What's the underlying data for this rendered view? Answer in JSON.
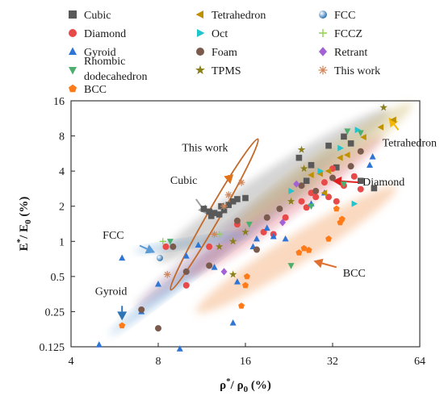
{
  "chart_data": {
    "type": "scatter",
    "xscale": "log2",
    "yscale": "log2",
    "xlim": [
      4,
      64
    ],
    "ylim": [
      0.125,
      16
    ],
    "xticks": [
      "4",
      "8",
      "16",
      "32",
      "64"
    ],
    "yticks": [
      "0.125",
      "0.25",
      "0.5",
      "1",
      "2",
      "4",
      "8",
      "16"
    ],
    "xlabel_main": "ρ",
    "xlabel_sup": "*",
    "xlabel_mid": "/ ρ",
    "xlabel_sub": "0",
    "xlabel_tail": " (%)",
    "ylabel_main": "E",
    "ylabel_sup": "*",
    "ylabel_mid": "/ E",
    "ylabel_sub": "0",
    "ylabel_tail": " (%)",
    "legend": [
      {
        "name": "Cubic",
        "marker": "square",
        "color": "#595959"
      },
      {
        "name": "Tetrahedron",
        "marker": "triangle-left",
        "color": "#bf9000"
      },
      {
        "name": "FCC",
        "marker": "circle-gradient",
        "color": "#5b9bd5"
      },
      {
        "name": "Diamond",
        "marker": "circle",
        "color": "#e84a4a"
      },
      {
        "name": "Oct",
        "marker": "triangle-right",
        "color": "#21c4cc"
      },
      {
        "name": "FCCZ",
        "marker": "plus",
        "color": "#92d050"
      },
      {
        "name": "Gyroid",
        "marker": "triangle-up",
        "color": "#2e75d6"
      },
      {
        "name": "Foam",
        "marker": "circle",
        "color": "#7b5a4e"
      },
      {
        "name": "Retrant",
        "marker": "diamond",
        "color": "#a461d6"
      },
      {
        "name": "Rhombic",
        "name2": "dodecahedron",
        "marker": "triangle-down",
        "color": "#4caf6e"
      },
      {
        "name": "TPMS",
        "marker": "star",
        "color": "#8a7f1a"
      },
      {
        "name": "This work",
        "marker": "asterisk",
        "color": "#d2875a"
      },
      {
        "name": "BCC",
        "marker": "pentagon",
        "color": "#ff7b1a"
      }
    ],
    "regions": [
      {
        "name": "Gyroid",
        "color": "#5b9bd5",
        "cx": 12.5,
        "cy": 0.75,
        "sa": 2.85,
        "sb": 1.12,
        "angle": 37
      },
      {
        "name": "BCC",
        "color": "#f4a46a",
        "cx": 24,
        "cy": 0.85,
        "sa": 2.55,
        "sb": 1.33,
        "angle": 32
      },
      {
        "name": "Foam",
        "color": "#9a7da8",
        "cx": 15,
        "cy": 1.3,
        "sa": 2.8,
        "sb": 1.2,
        "angle": 38
      },
      {
        "name": "Diamond",
        "color": "#e07a8a",
        "cx": 22,
        "cy": 2.0,
        "sa": 2.6,
        "sb": 1.27,
        "angle": 36
      },
      {
        "name": "FCC",
        "color": "#5b9bd5",
        "cx": 10.5,
        "cy": 0.98,
        "sa": 1.6,
        "sb": 1.09,
        "angle": 9
      },
      {
        "name": "Cubic",
        "color": "#9a9a9a",
        "cx": 20,
        "cy": 3.0,
        "sa": 3.0,
        "sb": 1.38,
        "angle": 33
      },
      {
        "name": "Tetrahedron",
        "color": "#d6c27a",
        "cx": 30,
        "cy": 4.5,
        "sa": 2.35,
        "sb": 1.3,
        "angle": 35
      },
      {
        "name": "This work",
        "color": "#c36a2a",
        "cx": 12.5,
        "cy": 1.7,
        "sa": 2.0,
        "sb": 1.13,
        "angle": 60
      }
    ],
    "points": [
      {
        "s": "Cubic",
        "x": 11.5,
        "y": 1.9
      },
      {
        "s": "Cubic",
        "x": 12,
        "y": 1.8
      },
      {
        "s": "Cubic",
        "x": 12.5,
        "y": 1.75
      },
      {
        "s": "Cubic",
        "x": 13,
        "y": 1.7
      },
      {
        "s": "Cubic",
        "x": 13.5,
        "y": 1.85
      },
      {
        "s": "Cubic",
        "x": 14,
        "y": 2.05
      },
      {
        "s": "Cubic",
        "x": 14.5,
        "y": 2.2
      },
      {
        "s": "Cubic",
        "x": 15,
        "y": 2.3
      },
      {
        "s": "Cubic",
        "x": 16,
        "y": 2.35
      },
      {
        "s": "Cubic",
        "x": 12.2,
        "y": 1.65
      },
      {
        "s": "Cubic",
        "x": 13.2,
        "y": 2.0
      },
      {
        "s": "Cubic",
        "x": 24.5,
        "y": 5.2
      },
      {
        "s": "Cubic",
        "x": 27,
        "y": 4.5
      },
      {
        "s": "Cubic",
        "x": 31,
        "y": 6.6
      },
      {
        "s": "Cubic",
        "x": 35,
        "y": 7.9
      },
      {
        "s": "Cubic",
        "x": 37,
        "y": 6.9
      },
      {
        "s": "Cubic",
        "x": 40,
        "y": 3.3
      },
      {
        "s": "Cubic",
        "x": 44.5,
        "y": 2.85
      },
      {
        "s": "Cubic",
        "x": 33,
        "y": 4.3
      },
      {
        "s": "Cubic",
        "x": 26,
        "y": 3.3
      },
      {
        "s": "Diamond",
        "x": 8.5,
        "y": 0.9
      },
      {
        "s": "Diamond",
        "x": 10,
        "y": 0.42
      },
      {
        "s": "Diamond",
        "x": 12,
        "y": 0.9
      },
      {
        "s": "Diamond",
        "x": 15,
        "y": 1.4
      },
      {
        "s": "Diamond",
        "x": 18.5,
        "y": 1.2
      },
      {
        "s": "Diamond",
        "x": 20,
        "y": 1.15
      },
      {
        "s": "Diamond",
        "x": 22,
        "y": 1.6
      },
      {
        "s": "Diamond",
        "x": 25,
        "y": 2.2
      },
      {
        "s": "Diamond",
        "x": 26,
        "y": 1.95
      },
      {
        "s": "Diamond",
        "x": 27,
        "y": 2.6
      },
      {
        "s": "Diamond",
        "x": 28,
        "y": 2.4
      },
      {
        "s": "Diamond",
        "x": 30,
        "y": 3.2
      },
      {
        "s": "Diamond",
        "x": 31,
        "y": 2.4
      },
      {
        "s": "Diamond",
        "x": 32,
        "y": 4.2
      },
      {
        "s": "Diamond",
        "x": 33,
        "y": 2.2
      },
      {
        "s": "Diamond",
        "x": 35,
        "y": 3.0
      },
      {
        "s": "Diamond",
        "x": 38,
        "y": 3.6
      },
      {
        "s": "Diamond",
        "x": 40,
        "y": 2.8
      },
      {
        "s": "Gyroid",
        "x": 5,
        "y": 0.13
      },
      {
        "s": "Gyroid",
        "x": 6,
        "y": 0.72
      },
      {
        "s": "Gyroid",
        "x": 7,
        "y": 0.25
      },
      {
        "s": "Gyroid",
        "x": 8,
        "y": 0.43
      },
      {
        "s": "Gyroid",
        "x": 9.5,
        "y": 0.12
      },
      {
        "s": "Gyroid",
        "x": 10,
        "y": 0.75
      },
      {
        "s": "Gyroid",
        "x": 11,
        "y": 0.93
      },
      {
        "s": "Gyroid",
        "x": 12.5,
        "y": 0.6
      },
      {
        "s": "Gyroid",
        "x": 14.5,
        "y": 0.2
      },
      {
        "s": "Gyroid",
        "x": 15,
        "y": 0.45
      },
      {
        "s": "Gyroid",
        "x": 17,
        "y": 0.9
      },
      {
        "s": "Gyroid",
        "x": 17.5,
        "y": 1.05
      },
      {
        "s": "Gyroid",
        "x": 19,
        "y": 1.3
      },
      {
        "s": "Gyroid",
        "x": 20,
        "y": 1.1
      },
      {
        "s": "Gyroid",
        "x": 22,
        "y": 1.05
      },
      {
        "s": "Gyroid",
        "x": 27,
        "y": 2.1
      },
      {
        "s": "Gyroid",
        "x": 30,
        "y": 2.6
      },
      {
        "s": "Gyroid",
        "x": 43,
        "y": 4.5
      },
      {
        "s": "Gyroid",
        "x": 44,
        "y": 5.3
      },
      {
        "s": "Rhombic",
        "x": 8.8,
        "y": 1.0
      },
      {
        "s": "Rhombic",
        "x": 16.5,
        "y": 1.4
      },
      {
        "s": "Rhombic",
        "x": 23,
        "y": 0.62
      },
      {
        "s": "Rhombic",
        "x": 27,
        "y": 2.0
      },
      {
        "s": "Rhombic",
        "x": 35,
        "y": 3.1
      },
      {
        "s": "Rhombic",
        "x": 36,
        "y": 8.8
      },
      {
        "s": "Rhombic",
        "x": 40,
        "y": 8.5
      },
      {
        "s": "Tetrahedron",
        "x": 27,
        "y": 3.7
      },
      {
        "s": "Tetrahedron",
        "x": 29,
        "y": 3.8
      },
      {
        "s": "Tetrahedron",
        "x": 31,
        "y": 4.0
      },
      {
        "s": "Tetrahedron",
        "x": 34,
        "y": 5.2
      },
      {
        "s": "Tetrahedron",
        "x": 36,
        "y": 5.5
      },
      {
        "s": "Tetrahedron",
        "x": 41,
        "y": 7.8
      },
      {
        "s": "Tetrahedron",
        "x": 47,
        "y": 9.5
      },
      {
        "s": "Tetrahedron",
        "x": 52,
        "y": 11
      },
      {
        "s": "Tetrahedron",
        "x": 30,
        "y": 2.6
      },
      {
        "s": "Oct",
        "x": 23,
        "y": 2.7
      },
      {
        "s": "Oct",
        "x": 29,
        "y": 4.0
      },
      {
        "s": "Oct",
        "x": 34,
        "y": 6.3
      },
      {
        "s": "Oct",
        "x": 39,
        "y": 9.0
      },
      {
        "s": "Oct",
        "x": 38,
        "y": 2.1
      },
      {
        "s": "Foam",
        "x": 7,
        "y": 0.26
      },
      {
        "s": "Foam",
        "x": 8,
        "y": 0.18
      },
      {
        "s": "Foam",
        "x": 9,
        "y": 0.9
      },
      {
        "s": "Foam",
        "x": 10,
        "y": 0.55
      },
      {
        "s": "Foam",
        "x": 12,
        "y": 0.62
      },
      {
        "s": "Foam",
        "x": 15,
        "y": 1.5
      },
      {
        "s": "Foam",
        "x": 17.5,
        "y": 0.85
      },
      {
        "s": "Foam",
        "x": 19,
        "y": 1.6
      },
      {
        "s": "Foam",
        "x": 21,
        "y": 1.9
      },
      {
        "s": "Foam",
        "x": 25,
        "y": 3.0
      },
      {
        "s": "Foam",
        "x": 28,
        "y": 2.7
      },
      {
        "s": "Foam",
        "x": 32,
        "y": 3.5
      },
      {
        "s": "Foam",
        "x": 37,
        "y": 4.4
      },
      {
        "s": "Foam",
        "x": 40,
        "y": 5.9
      },
      {
        "s": "TPMS",
        "x": 13,
        "y": 0.9
      },
      {
        "s": "TPMS",
        "x": 14.5,
        "y": 1.0
      },
      {
        "s": "TPMS",
        "x": 16,
        "y": 1.2
      },
      {
        "s": "TPMS",
        "x": 14.5,
        "y": 0.52
      },
      {
        "s": "TPMS",
        "x": 23,
        "y": 2.2
      },
      {
        "s": "TPMS",
        "x": 25.5,
        "y": 4.2
      },
      {
        "s": "TPMS",
        "x": 25,
        "y": 6.1
      },
      {
        "s": "TPMS",
        "x": 48,
        "y": 14
      },
      {
        "s": "BCC",
        "x": 6,
        "y": 0.19
      },
      {
        "s": "BCC",
        "x": 15.5,
        "y": 0.28
      },
      {
        "s": "BCC",
        "x": 16,
        "y": 0.42
      },
      {
        "s": "BCC",
        "x": 16.2,
        "y": 0.5
      },
      {
        "s": "BCC",
        "x": 24.5,
        "y": 0.8
      },
      {
        "s": "BCC",
        "x": 25.5,
        "y": 0.87
      },
      {
        "s": "BCC",
        "x": 26.5,
        "y": 0.84
      },
      {
        "s": "BCC",
        "x": 31,
        "y": 1.05
      },
      {
        "s": "BCC",
        "x": 34,
        "y": 1.45
      },
      {
        "s": "BCC",
        "x": 34.5,
        "y": 1.55
      },
      {
        "s": "BCC",
        "x": 33,
        "y": 1.9
      },
      {
        "s": "FCC",
        "x": 8.1,
        "y": 0.72
      },
      {
        "s": "FCCZ",
        "x": 8.3,
        "y": 1.0
      },
      {
        "s": "FCCZ",
        "x": 13,
        "y": 1.15
      },
      {
        "s": "Retrant",
        "x": 13.5,
        "y": 0.55
      },
      {
        "s": "Retrant",
        "x": 21.5,
        "y": 1.45
      },
      {
        "s": "Retrant",
        "x": 24,
        "y": 3.1
      },
      {
        "s": "This work",
        "x": 8.6,
        "y": 0.52
      },
      {
        "s": "This work",
        "x": 12.5,
        "y": 1.15
      },
      {
        "s": "This work",
        "x": 14,
        "y": 2.5
      },
      {
        "s": "This work",
        "x": 15.5,
        "y": 3.2
      },
      {
        "s": "This work",
        "x": 13.5,
        "y": 2.0
      }
    ],
    "annotations": [
      {
        "text": "This work",
        "tx": 11.6,
        "ty": 5.9,
        "ax": 14.2,
        "ay": 3.1,
        "bx": 14.0,
        "by": 3.7,
        "color": "#e0721c"
      },
      {
        "text": "Cubic",
        "tx": 9.8,
        "ty": 3.1,
        "ax": 11.8,
        "ay": 1.7,
        "bx": 10.8,
        "by": 2.3,
        "color": "#a0a0a0"
      },
      {
        "text": "FCC",
        "tx": 5.6,
        "ty": 1.05,
        "ax": 7.8,
        "ay": 0.8,
        "bx": 6.9,
        "by": 0.92,
        "color": "#5b9bd5"
      },
      {
        "text": "Gyroid",
        "tx": 5.5,
        "ty": 0.35,
        "ax": 6.0,
        "ay": 0.21,
        "bx": 6.0,
        "by": 0.28,
        "color": "#2e75b6"
      },
      {
        "text": "Tetrahedron",
        "tx": 59,
        "ty": 6.5,
        "ax": 50,
        "ay": 11.5,
        "bx": 54,
        "by": 9.0,
        "color": "#f5b800"
      },
      {
        "text": "Diamond",
        "tx": 48,
        "ty": 3.0,
        "ax": 32,
        "ay": 3.3,
        "bx": 40,
        "by": 3.2,
        "color": "#e02020"
      },
      {
        "text": "BCC",
        "tx": 38,
        "ty": 0.5,
        "ax": 27.5,
        "ay": 0.68,
        "bx": 33,
        "by": 0.6,
        "color": "#e07030"
      }
    ]
  }
}
